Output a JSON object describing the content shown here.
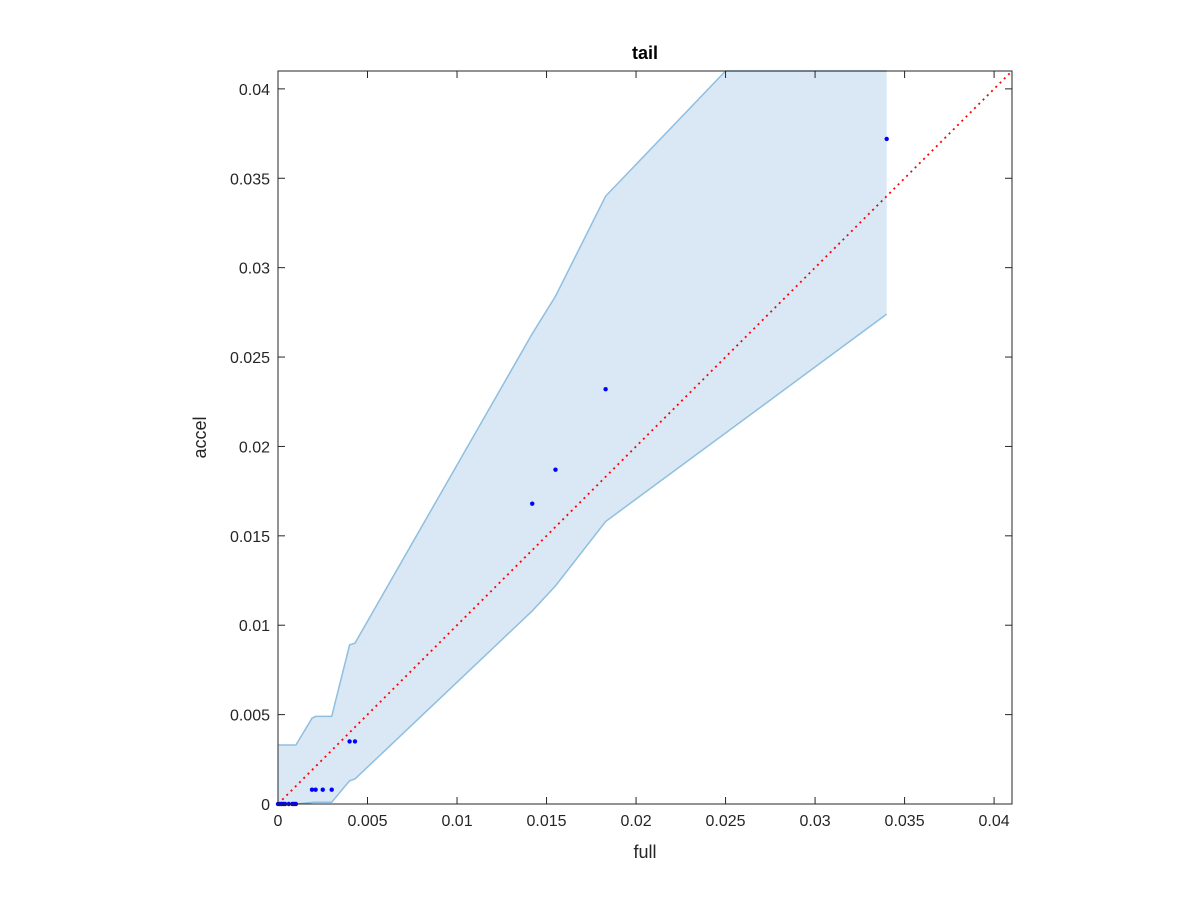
{
  "chart_data": {
    "type": "scatter",
    "title": "tail",
    "xlabel": "full",
    "ylabel": "accel",
    "xlim": [
      0,
      0.041
    ],
    "ylim": [
      0,
      0.041
    ],
    "xticks": [
      0,
      0.005,
      0.01,
      0.015,
      0.02,
      0.025,
      0.03,
      0.035,
      0.04
    ],
    "yticks": [
      0,
      0.005,
      0.01,
      0.015,
      0.02,
      0.025,
      0.03,
      0.035,
      0.04
    ],
    "tick_labels": {
      "x": [
        "0",
        "0.005",
        "0.01",
        "0.015",
        "0.02",
        "0.025",
        "0.03",
        "0.035",
        "0.04"
      ],
      "y": [
        "0",
        "0.005",
        "0.01",
        "0.015",
        "0.02",
        "0.025",
        "0.03",
        "0.035",
        "0.04"
      ]
    },
    "grid": false,
    "series": [
      {
        "kind": "points",
        "color": "#0000ff",
        "x": [
          0.0,
          0.0001,
          0.0002,
          0.0003,
          0.0004,
          0.0006,
          0.0008,
          0.0009,
          0.001,
          0.0019,
          0.0021,
          0.0025,
          0.003,
          0.004,
          0.0043,
          0.0142,
          0.0155,
          0.0183,
          0.034
        ],
        "y": [
          0.0,
          0.0,
          0.0,
          0.0,
          0.0,
          0.0,
          0.0,
          0.0,
          0.0,
          0.0008,
          0.0008,
          0.0008,
          0.0008,
          0.0035,
          0.0035,
          0.0168,
          0.0187,
          0.0232,
          0.0372
        ]
      },
      {
        "kind": "band",
        "fill": "#d9e8f4",
        "stroke": "#8fbfe0",
        "upper": {
          "x": [
            0.0,
            0.0001,
            0.001,
            0.0019,
            0.0021,
            0.003,
            0.004,
            0.0043,
            0.0142,
            0.0155,
            0.0183,
            0.025,
            0.034
          ],
          "y": [
            0.0033,
            0.0033,
            0.0033,
            0.0048,
            0.0049,
            0.0049,
            0.0089,
            0.009,
            0.0263,
            0.0284,
            0.034,
            0.041,
            0.041
          ]
        },
        "lower": {
          "x": [
            0.0,
            0.001,
            0.002,
            0.003,
            0.004,
            0.0043,
            0.0142,
            0.0155,
            0.0183,
            0.034
          ],
          "y": [
            0.0,
            0.0,
            0.0001,
            0.0001,
            0.0013,
            0.0014,
            0.0108,
            0.0122,
            0.0158,
            0.0274
          ]
        }
      },
      {
        "kind": "reference-line",
        "style": "dotted",
        "color": "#ff0000",
        "x": [
          0,
          0.041
        ],
        "y": [
          0,
          0.041
        ]
      }
    ]
  }
}
